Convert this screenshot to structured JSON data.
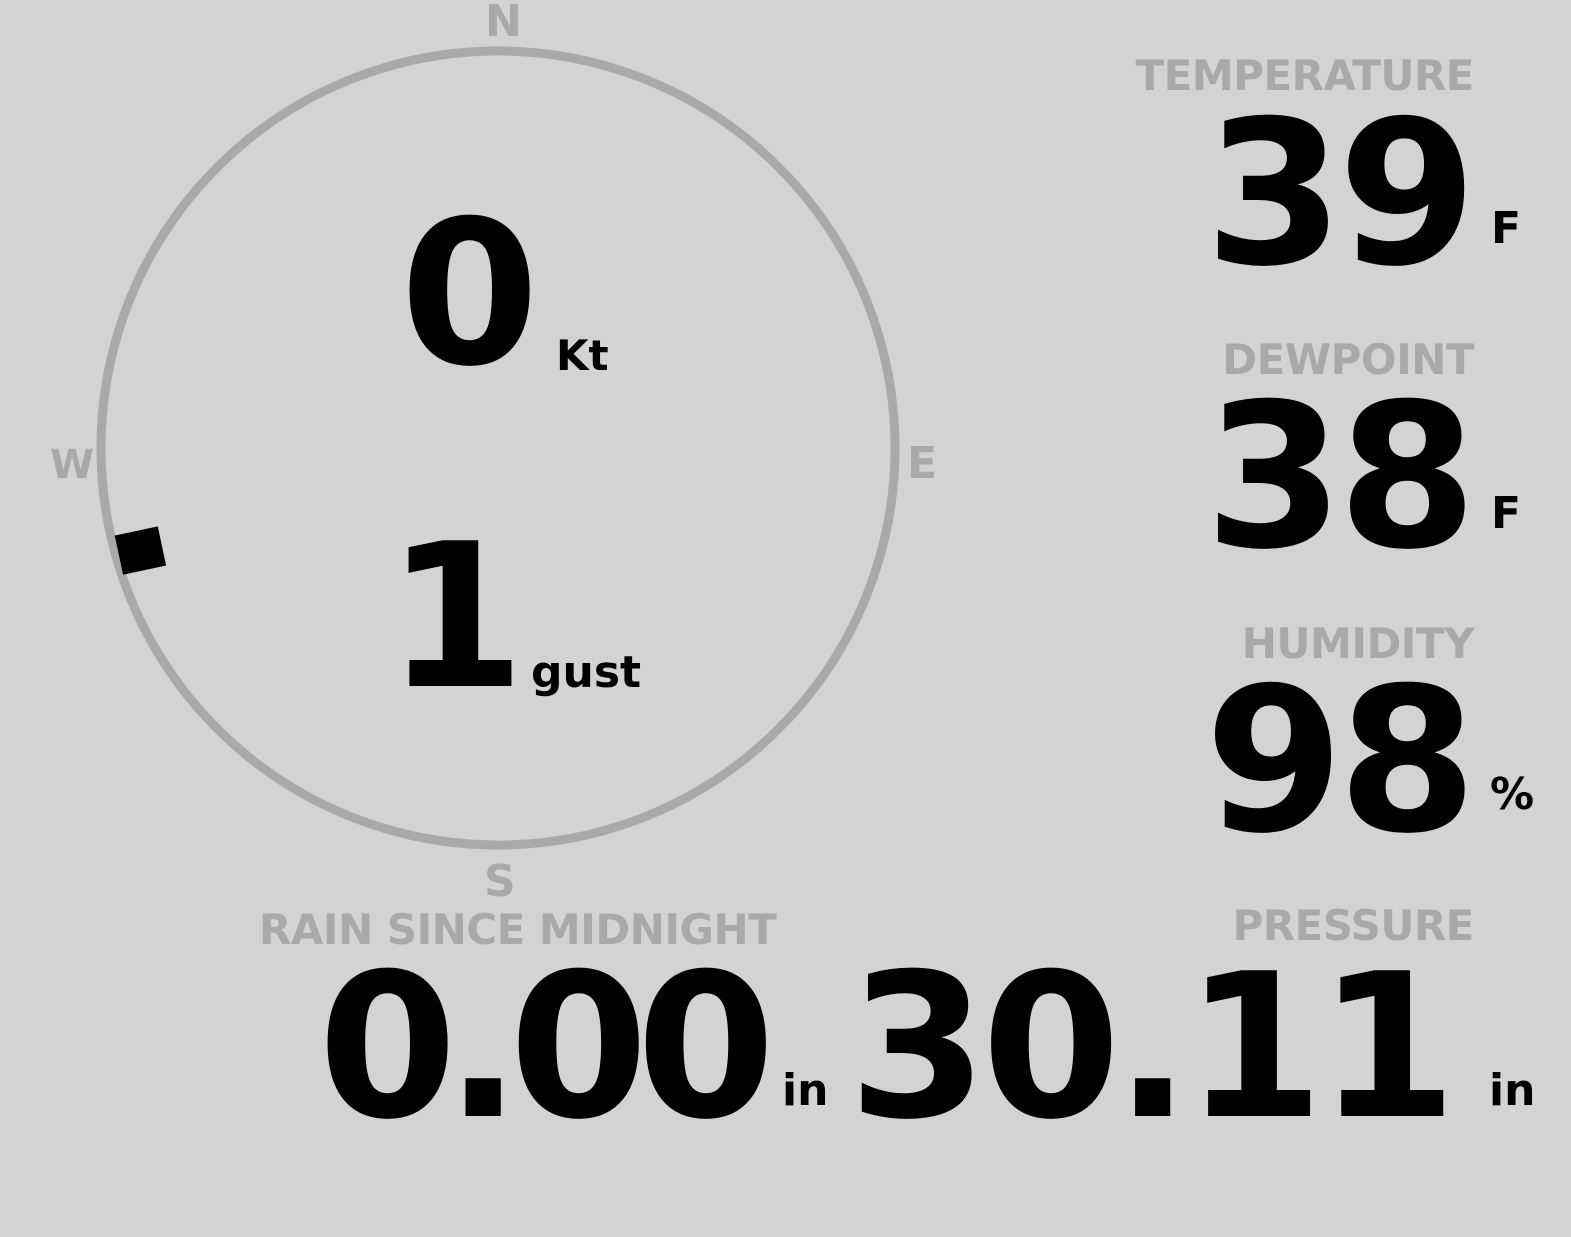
{
  "compass": {
    "north": "N",
    "south": "S",
    "east": "E",
    "west": "W",
    "wind_direction_deg": 254,
    "ring_color": "#a9a9a9",
    "marker_color": "#000000"
  },
  "wind": {
    "speed": "0",
    "speed_unit": "Kt",
    "gust": "1",
    "gust_unit": "gust"
  },
  "temperature": {
    "label": "TEMPERATURE",
    "value": "39",
    "unit": "F"
  },
  "dewpoint": {
    "label": "DEWPOINT",
    "value": "38",
    "unit": "F"
  },
  "humidity": {
    "label": "HUMIDITY",
    "value": "98",
    "unit": "%"
  },
  "rain": {
    "label": "RAIN SINCE MIDNIGHT",
    "value": "0.00",
    "unit": "in"
  },
  "pressure": {
    "label": "PRESSURE",
    "value": "30.11",
    "unit": "in"
  },
  "colors": {
    "background": "#d3d3d3",
    "label": "#a9a9a9",
    "value": "#000000"
  }
}
